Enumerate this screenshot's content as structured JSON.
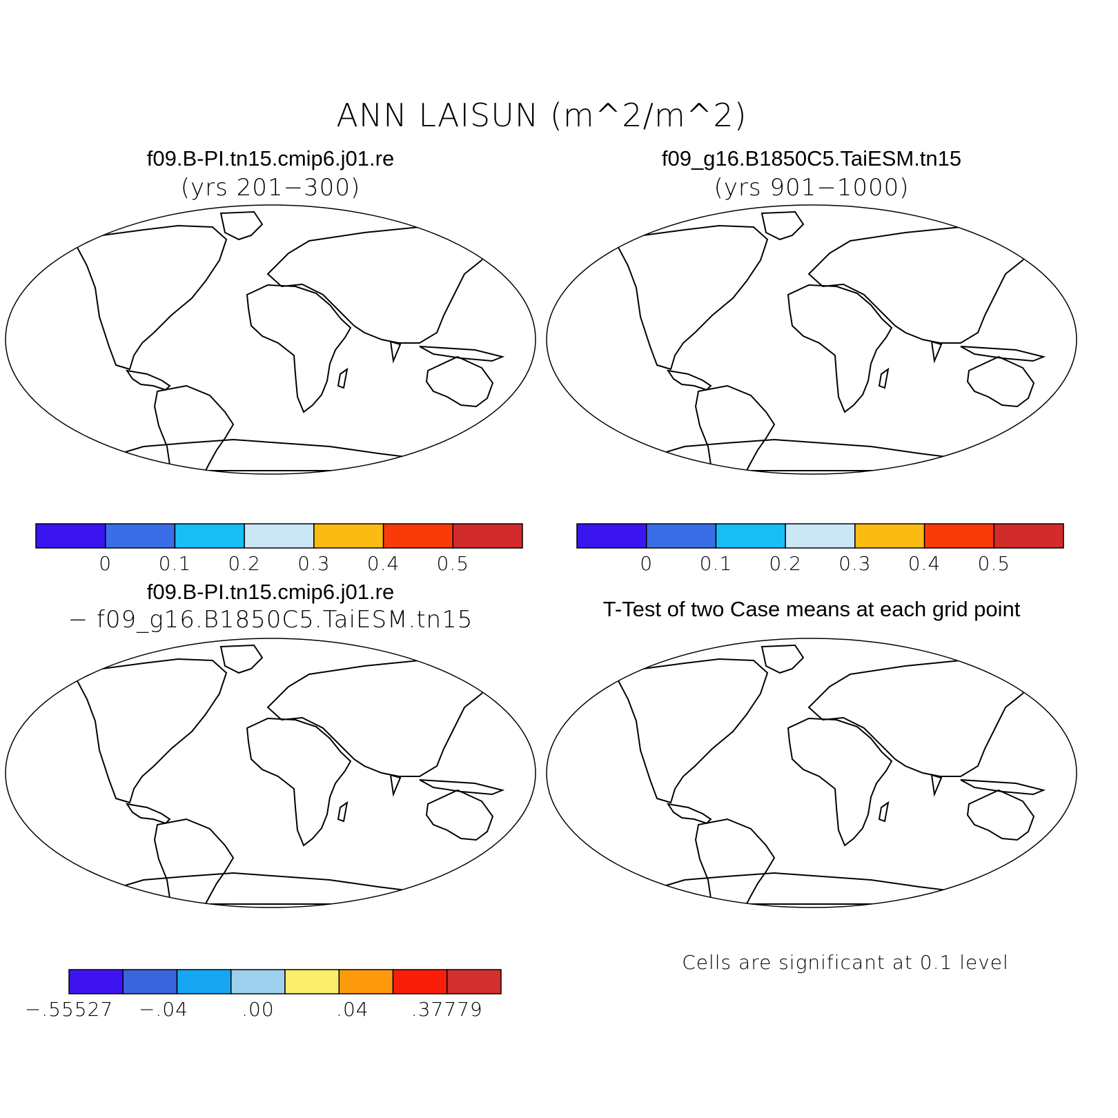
{
  "figure": {
    "title": "ANN LAISUN (m^2/m^2)"
  },
  "panels": [
    {
      "id": "case1",
      "title": "f09.B-PI.tn15.cmip6.j01.re",
      "subtitle": "(yrs 201−300)",
      "land_fill": "mean-field",
      "colorbar": {
        "colors": [
          "#3a15f0",
          "#3a6ee6",
          "#17bdf5",
          "#c9e7f5",
          "#fbbb13",
          "#fb3a0a",
          "#d22b2b"
        ],
        "labels": [
          "0",
          "0.1",
          "0.2",
          "0.3",
          "0.4",
          "0.5"
        ]
      }
    },
    {
      "id": "case2",
      "title": "f09_g16.B1850C5.TaiESM.tn15",
      "subtitle": "(yrs 901−1000)",
      "land_fill": "mean-field",
      "colorbar": {
        "colors": [
          "#3a15f0",
          "#3a6ee6",
          "#17bdf5",
          "#c9e7f5",
          "#fbbb13",
          "#fb3a0a",
          "#d22b2b"
        ],
        "labels": [
          "0",
          "0.1",
          "0.2",
          "0.3",
          "0.4",
          "0.5"
        ]
      }
    },
    {
      "id": "difference",
      "title": "f09.B-PI.tn15.cmip6.j01.re",
      "subtitle": "− f09_g16.B1850C5.TaiESM.tn15",
      "land_fill": "difference-field",
      "colorbar": {
        "colors": [
          "#3d14f0",
          "#3a65dc",
          "#16a6f2",
          "#9fd0ee",
          "#fced6b",
          "#fe9b0c",
          "#fa1e0a",
          "#d42f2f"
        ],
        "labels": [
          "−.55527",
          "−.04",
          ".00",
          ".04",
          ".37779"
        ]
      }
    },
    {
      "id": "ttest",
      "title": "T-Test of two Case means at each grid point",
      "land_fill": "significance",
      "note": "Cells are significant at 0.1 level",
      "colors": {
        "significant": "#fa0a0a"
      }
    }
  ]
}
